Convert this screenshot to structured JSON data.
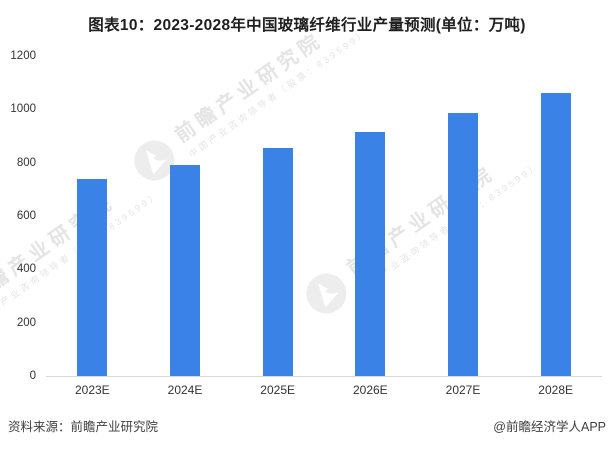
{
  "title": "图表10：2023-2028年中国玻璃纤维行业产量预测(单位：万吨)",
  "chart_data": {
    "type": "bar",
    "title": "图表10：2023-2028年中国玻璃纤维行业产量预测(单位：万吨)",
    "unit": "万吨",
    "categories": [
      "2023E",
      "2024E",
      "2025E",
      "2026E",
      "2027E",
      "2028E"
    ],
    "values": [
      740,
      790,
      855,
      915,
      985,
      1060
    ],
    "xlabel": "",
    "ylabel": "",
    "ylim": [
      0,
      1200
    ],
    "yticks": [
      0,
      200,
      400,
      600,
      800,
      1000,
      1200
    ],
    "grid": false,
    "legend": "none",
    "bar_color": "#3b82e6",
    "axis_line_color": "#d9d9d9"
  },
  "footer": {
    "source": "资料来源：前瞻产业研究院",
    "credit": "@前瞻经济学人APP"
  },
  "watermark": {
    "brand": "前瞻产业研究院",
    "subtitle": "中国产业咨询领导者（股票：839599）",
    "logo": "qianzhan-bird-logo"
  }
}
